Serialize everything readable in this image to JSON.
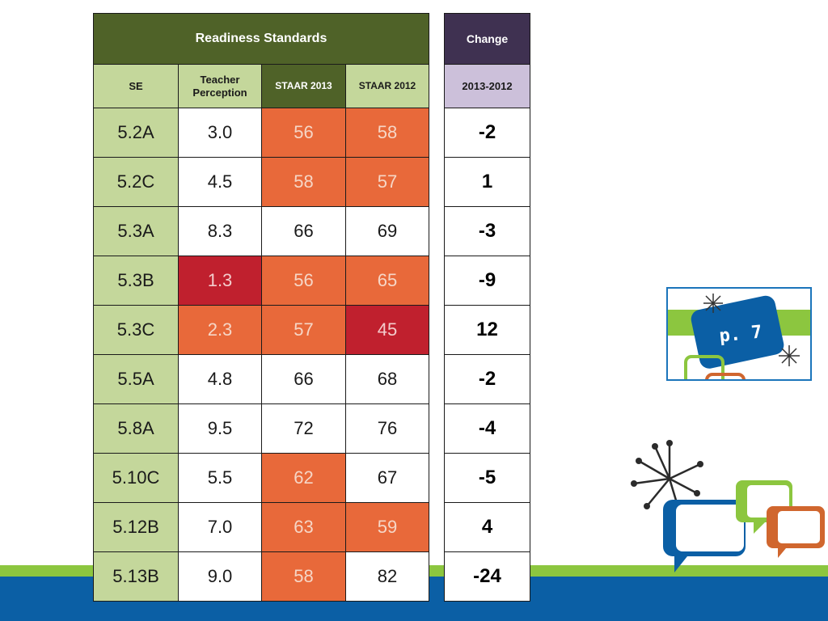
{
  "table": {
    "title": "Readiness Standards",
    "headers": {
      "se": "SE",
      "teacher": "Teacher Perception",
      "staar2013": "STAAR 2013",
      "staar2012": "STAAR 2012"
    },
    "rows": [
      {
        "se": "5.2A",
        "teacher": "3.0",
        "s2013": "56",
        "s2012": "58"
      },
      {
        "se": "5.2C",
        "teacher": "4.5",
        "s2013": "58",
        "s2012": "57"
      },
      {
        "se": "5.3A",
        "teacher": "8.3",
        "s2013": "66",
        "s2012": "69"
      },
      {
        "se": "5.3B",
        "teacher": "1.3",
        "s2013": "56",
        "s2012": "65"
      },
      {
        "se": "5.3C",
        "teacher": "2.3",
        "s2013": "57",
        "s2012": "45"
      },
      {
        "se": "5.5A",
        "teacher": "4.8",
        "s2013": "66",
        "s2012": "68"
      },
      {
        "se": "5.8A",
        "teacher": "9.5",
        "s2013": "72",
        "s2012": "76"
      },
      {
        "se": "5.10C",
        "teacher": "5.5",
        "s2013": "62",
        "s2012": "67"
      },
      {
        "se": "5.12B",
        "teacher": "7.0",
        "s2013": "63",
        "s2012": "59"
      },
      {
        "se": "5.13B",
        "teacher": "9.0",
        "s2013": "58",
        "s2012": "82"
      }
    ]
  },
  "change": {
    "title": "Change",
    "subheader": "2013-2012",
    "values": [
      "-2",
      "1",
      "-3",
      "-9",
      "12",
      "-2",
      "-4",
      "-5",
      "4",
      "-24"
    ]
  },
  "badge": {
    "label": "p. 7"
  },
  "colors": {
    "header_dark_green": "#4f6228",
    "light_green": "#c4d79b",
    "orange": "#e8693a",
    "red": "#c0202e",
    "purple": "#3f3151",
    "lavender": "#ccc0da",
    "blue": "#0b5fa5",
    "bright_green": "#8cc63f"
  }
}
